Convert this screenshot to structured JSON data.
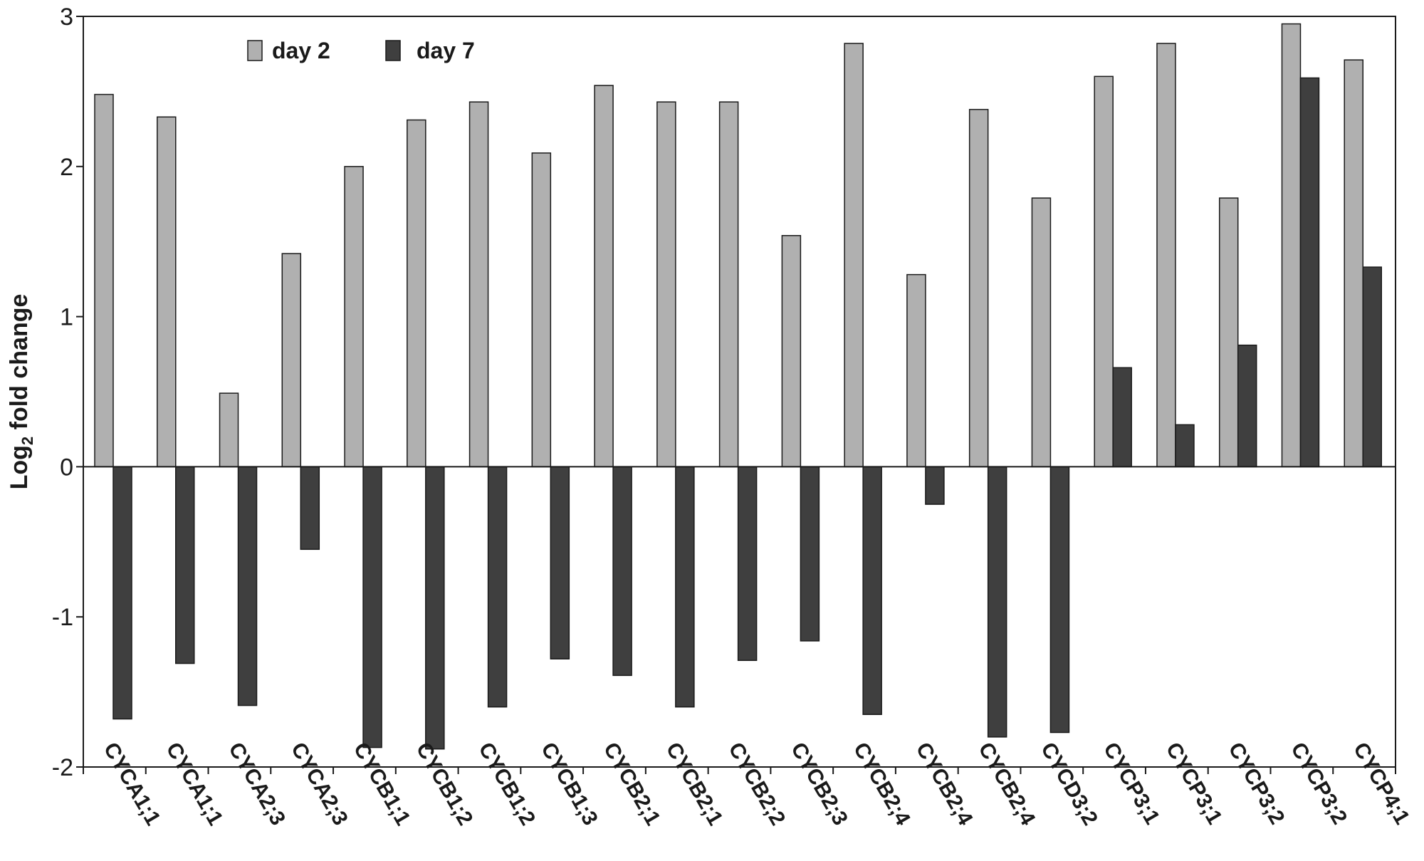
{
  "chart_data": {
    "type": "bar",
    "categories": [
      "CYCA1;1",
      "CYCA1;1",
      "CYCA2;3",
      "CYCA2;3",
      "CYCB1;1",
      "CYCB1;2",
      "CYCB1;2",
      "CYCB1;3",
      "CYCB2;1",
      "CYCB2;1",
      "CYCB2;2",
      "CYCB2;3",
      "CYCB2;4",
      "CYCB2;4",
      "CYCB2;4",
      "CYCD3;2",
      "CYCP3;1",
      "CYCP3;1",
      "CYCP3;2",
      "CYCP3;2",
      "CYCP4;1"
    ],
    "series": [
      {
        "name": "day 2",
        "color": "#b0b0b0",
        "values": [
          2.48,
          2.33,
          0.49,
          1.42,
          2.0,
          2.31,
          2.43,
          2.09,
          2.54,
          2.43,
          2.43,
          1.54,
          2.82,
          1.28,
          2.38,
          1.79,
          2.6,
          2.82,
          1.79,
          2.95,
          2.71
        ]
      },
      {
        "name": "day 7",
        "color": "#3f3f3f",
        "values": [
          -1.68,
          -1.31,
          -1.59,
          -0.55,
          -1.87,
          -1.88,
          -1.6,
          -1.28,
          -1.39,
          -1.6,
          -1.29,
          -1.16,
          -1.65,
          -0.25,
          -1.8,
          -1.77,
          0.66,
          0.28,
          0.81,
          2.59,
          1.33
        ]
      }
    ],
    "ylabel_main": "Log",
    "ylabel_sub": "2",
    "ylabel_rest": " fold change",
    "ylim": [
      -2,
      3
    ],
    "yticks": [
      "3",
      "2",
      "1",
      "0",
      "-1",
      "-2"
    ],
    "ytick_values": [
      3,
      2,
      1,
      0,
      -1,
      -2
    ],
    "legend_position": "top-left",
    "grid": false
  }
}
